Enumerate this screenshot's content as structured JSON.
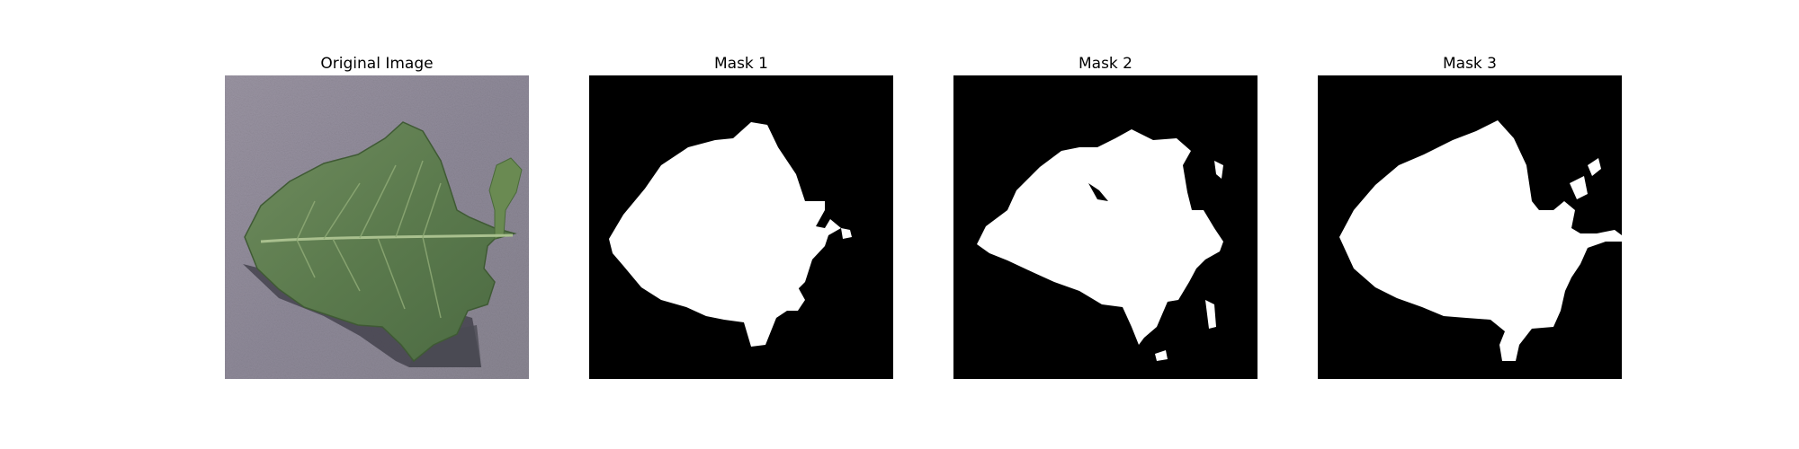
{
  "figure": {
    "panels": [
      {
        "title": "Original Image",
        "image": "leaf-photo"
      },
      {
        "title": "Mask 1",
        "image": "binary-mask"
      },
      {
        "title": "Mask 2",
        "image": "binary-mask"
      },
      {
        "title": "Mask 3",
        "image": "binary-mask"
      }
    ],
    "colors": {
      "background": "#ffffff",
      "mask_foreground": "#ffffff",
      "mask_background": "#000000",
      "photo_backdrop": "#928c98",
      "leaf_green": "#5c7a4e",
      "shadow": "#3a3a42"
    }
  }
}
